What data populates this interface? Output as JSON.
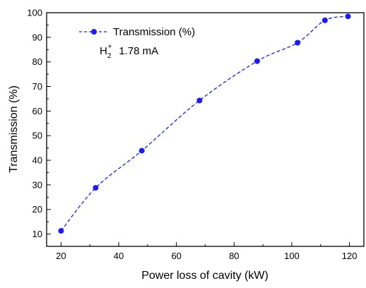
{
  "chart_data": {
    "type": "line",
    "xlabel": "Power loss of cavity (kW)",
    "ylabel": "Transmission (%)",
    "xlim": [
      15,
      125
    ],
    "ylim": [
      5,
      100
    ],
    "xticks": [
      20,
      40,
      60,
      80,
      100,
      120
    ],
    "yticks": [
      10,
      20,
      30,
      40,
      50,
      60,
      70,
      80,
      90,
      100
    ],
    "grid": false,
    "legend_position": "top-left",
    "series": [
      {
        "name": "Transmission (%)",
        "color": "#1a1aff",
        "line_style": "dashed",
        "marker": "circle",
        "x": [
          20,
          32,
          48,
          68,
          88,
          102,
          111.5,
          119.5
        ],
        "y": [
          11.3,
          28.8,
          43.9,
          64.3,
          80.3,
          87.8,
          96.9,
          98.5
        ]
      }
    ],
    "annotation": {
      "species": "H",
      "subscript": "2",
      "superscript": "+",
      "current": "1.78 mA"
    }
  }
}
